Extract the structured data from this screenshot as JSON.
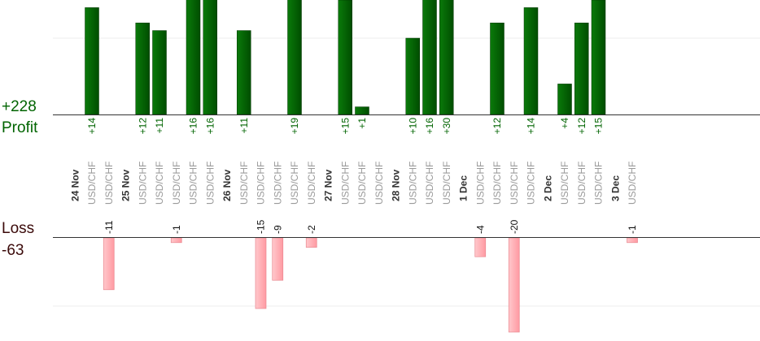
{
  "profit": {
    "total_label": "+228",
    "heading": "Profit",
    "color": "#006400"
  },
  "loss": {
    "total_label": "-63",
    "heading": "Loss",
    "color": "#ffb3b8"
  },
  "chart_data": {
    "type": "bar",
    "profit_scale_max": 20,
    "loss_scale_max": 20,
    "date_groups": [
      {
        "date": "24 Nov",
        "trades": [
          {
            "pair": "USD/CHF",
            "value": 14,
            "label": "+14"
          },
          {
            "pair": "USD/CHF",
            "value": -11,
            "label": "-11"
          }
        ]
      },
      {
        "date": "25 Nov",
        "trades": [
          {
            "pair": "USD/CHF",
            "value": 12,
            "label": "+12"
          },
          {
            "pair": "USD/CHF",
            "value": 11,
            "label": "+11"
          },
          {
            "pair": "USD/CHF",
            "value": -1,
            "label": "-1"
          },
          {
            "pair": "USD/CHF",
            "value": 16,
            "label": "+16"
          },
          {
            "pair": "USD/CHF",
            "value": 16,
            "label": "+16"
          }
        ]
      },
      {
        "date": "26 Nov",
        "trades": [
          {
            "pair": "USD/CHF",
            "value": 11,
            "label": "+11"
          },
          {
            "pair": "USD/CHF",
            "value": -15,
            "label": "-15"
          },
          {
            "pair": "USD/CHF",
            "value": -9,
            "label": "-9"
          },
          {
            "pair": "USD/CHF",
            "value": 19,
            "label": "+19"
          },
          {
            "pair": "USD/CHF",
            "value": -2,
            "label": "-2"
          }
        ]
      },
      {
        "date": "27 Nov",
        "trades": [
          {
            "pair": "USD/CHF",
            "value": 15,
            "label": "+15"
          },
          {
            "pair": "USD/CHF",
            "value": 1,
            "label": "+1"
          },
          {
            "pair": "USD/CHF",
            "value": null,
            "label": ""
          }
        ]
      },
      {
        "date": "28 Nov",
        "trades": [
          {
            "pair": "USD/CHF",
            "value": 10,
            "label": "+10"
          },
          {
            "pair": "USD/CHF",
            "value": 16,
            "label": "+16"
          },
          {
            "pair": "USD/CHF",
            "value": 30,
            "label": "+30"
          }
        ]
      },
      {
        "date": "1 Dec",
        "trades": [
          {
            "pair": "USD/CHF",
            "value": -4,
            "label": "-4"
          },
          {
            "pair": "USD/CHF",
            "value": 12,
            "label": "+12"
          },
          {
            "pair": "USD/CHF",
            "value": -20,
            "label": "-20"
          },
          {
            "pair": "USD/CHF",
            "value": 14,
            "label": "+14"
          }
        ]
      },
      {
        "date": "2 Dec",
        "trades": [
          {
            "pair": "USD/CHF",
            "value": 4,
            "label": "+4"
          },
          {
            "pair": "USD/CHF",
            "value": 12,
            "label": "+12"
          },
          {
            "pair": "USD/CHF",
            "value": 15,
            "label": "+15"
          }
        ]
      },
      {
        "date": "3 Dec",
        "trades": [
          {
            "pair": "USD/CHF",
            "value": -1,
            "label": "-1"
          }
        ]
      }
    ]
  }
}
